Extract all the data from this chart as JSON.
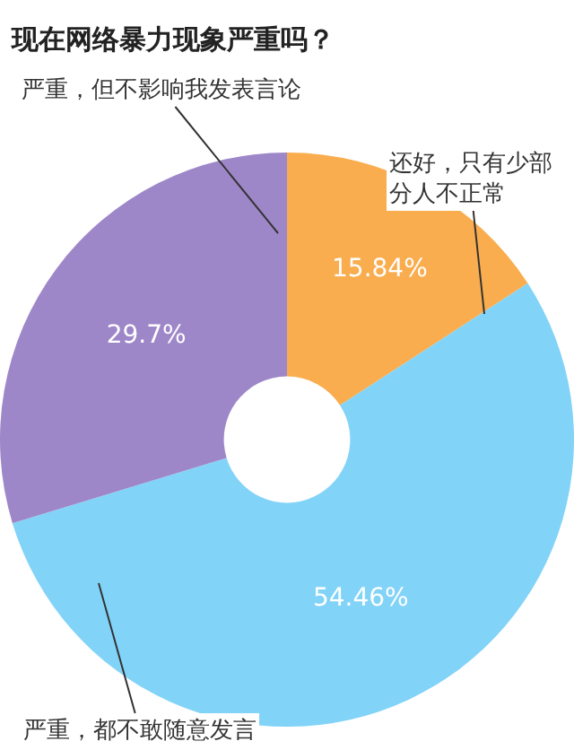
{
  "chart_data": {
    "type": "donut",
    "title": "现在网络暴力现象严重吗？",
    "categories": [
      "还好，只有少部分人不正常",
      "严重，都不敢随意发言",
      "严重，但不影响我发表言论"
    ],
    "values": [
      15.84,
      54.46,
      29.7
    ],
    "value_labels": [
      "15.84%",
      "54.46%",
      "29.7%"
    ],
    "colors": [
      "#f9ad4e",
      "#82d3f8",
      "#9e87c8"
    ],
    "legend": false
  }
}
